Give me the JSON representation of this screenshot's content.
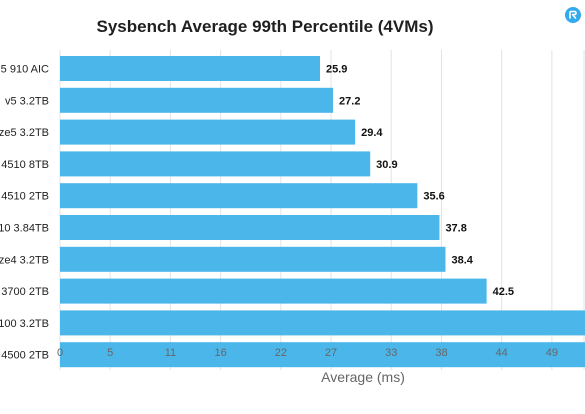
{
  "colors": {
    "bar": "#4bb6ea",
    "grid": "#e3e3e3",
    "logo": "#33aaee"
  },
  "logo_icon": "brand-logo-icon",
  "chart_data": {
    "type": "bar",
    "orientation": "horizontal",
    "title": "Sysbench Average 99th Percentile (4VMs)",
    "xlabel": "Average (ms)",
    "ylabel": "",
    "xlim": [
      0,
      52.3
    ],
    "x_ticks": [
      0,
      5,
      11,
      16,
      22,
      27,
      33,
      38,
      44,
      49
    ],
    "grid": true,
    "categories": [
      "5 910 AIC",
      "v5 3.2TB",
      "ze5 3.2TB",
      "4510 8TB",
      "4510 2TB",
      "10 3.84TB",
      "ze4 3.2TB",
      "3700 2TB",
      "100 3.2TB",
      "4500 2TB"
    ],
    "values": [
      25.9,
      27.2,
      29.4,
      30.9,
      35.6,
      37.8,
      38.4,
      42.5,
      null,
      null
    ],
    "value_labels": [
      "25.9",
      "27.2",
      "29.4",
      "30.9",
      "35.6",
      "37.8",
      "38.4",
      "42.5",
      "",
      ""
    ]
  }
}
